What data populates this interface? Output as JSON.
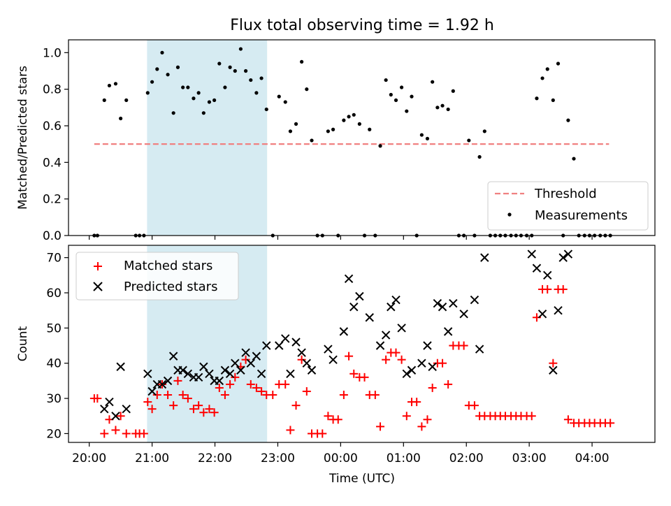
{
  "figure": {
    "title": "Flux total observing time = 1.92 h",
    "xlabel": "Time (UTC)",
    "xticks": [
      {
        "label": "20:00",
        "hours": 20.0
      },
      {
        "label": "21:00",
        "hours": 21.0
      },
      {
        "label": "22:00",
        "hours": 22.0
      },
      {
        "label": "23:00",
        "hours": 23.0
      },
      {
        "label": "00:00",
        "hours": 24.0
      },
      {
        "label": "01:00",
        "hours": 25.0
      },
      {
        "label": "02:00",
        "hours": 26.0
      },
      {
        "label": "03:00",
        "hours": 27.0
      },
      {
        "label": "04:00",
        "hours": 28.0
      }
    ],
    "colors": {
      "span": "#add8e6",
      "threshold": "#f08080",
      "matched": "#ff0000",
      "predicted": "#000000",
      "measurements": "#000000"
    }
  },
  "chart_data": [
    {
      "type": "scatter",
      "panel": "top",
      "ylabel": "Matched/Predicted stars",
      "yticks": [
        "0.0",
        "0.2",
        "0.4",
        "0.6",
        "0.8",
        "1.0"
      ],
      "xlim": [
        19.67,
        29.0
      ],
      "ylim": [
        0.0,
        1.07
      ],
      "shaded_span": {
        "start": 20.92,
        "end": 22.83
      },
      "threshold": {
        "name": "Threshold",
        "y": 0.5,
        "x_start": 20.08,
        "x_end": 28.27
      },
      "legend": {
        "location": "lower right",
        "entries": [
          "Threshold",
          "Measurements"
        ]
      },
      "series": [
        {
          "name": "Measurements",
          "x": [
            20.08,
            20.13,
            20.24,
            20.32,
            20.42,
            20.5,
            20.59,
            20.74,
            20.8,
            20.87,
            20.93,
            21.0,
            21.08,
            21.16,
            21.25,
            21.34,
            21.41,
            21.49,
            21.57,
            21.66,
            21.74,
            21.82,
            21.91,
            21.99,
            22.07,
            22.16,
            22.24,
            22.32,
            22.41,
            22.49,
            22.57,
            22.66,
            22.74,
            22.82,
            22.92,
            23.02,
            23.12,
            23.2,
            23.29,
            23.38,
            23.46,
            23.54,
            23.63,
            23.71,
            23.8,
            23.88,
            23.96,
            24.05,
            24.13,
            24.21,
            24.3,
            24.38,
            24.46,
            24.55,
            24.63,
            24.72,
            24.8,
            24.88,
            24.97,
            25.05,
            25.13,
            25.21,
            25.29,
            25.38,
            25.46,
            25.54,
            25.62,
            25.71,
            25.79,
            25.88,
            25.96,
            26.04,
            26.13,
            26.21,
            26.29,
            26.38,
            26.46,
            26.54,
            26.62,
            26.71,
            26.79,
            26.87,
            26.96,
            27.04,
            27.12,
            27.21,
            27.29,
            27.38,
            27.46,
            27.54,
            27.62,
            27.71,
            27.79,
            27.88,
            27.96,
            28.04,
            28.13,
            28.21,
            28.29
          ],
          "y": [
            0.0,
            0.0,
            0.74,
            0.82,
            0.83,
            0.64,
            0.74,
            0.0,
            0.0,
            0.0,
            0.78,
            0.84,
            0.91,
            1.0,
            0.88,
            0.67,
            0.92,
            0.81,
            0.81,
            0.75,
            0.78,
            0.67,
            0.73,
            0.74,
            0.94,
            0.81,
            0.92,
            0.9,
            1.02,
            0.9,
            0.85,
            0.78,
            0.86,
            0.69,
            0.0,
            0.76,
            0.73,
            0.57,
            0.61,
            0.95,
            0.8,
            0.52,
            0.0,
            0.0,
            0.57,
            0.58,
            0.0,
            0.63,
            0.65,
            0.66,
            0.61,
            0.0,
            0.58,
            0.0,
            0.49,
            0.85,
            0.77,
            0.74,
            0.81,
            0.68,
            0.76,
            0.0,
            0.55,
            0.53,
            0.84,
            0.7,
            0.71,
            0.69,
            0.79,
            0.0,
            0.0,
            0.52,
            0.0,
            0.43,
            0.57,
            0.0,
            0.0,
            0.0,
            0.0,
            0.0,
            0.0,
            0.0,
            0.0,
            0.0,
            0.75,
            0.86,
            0.91,
            0.74,
            0.94,
            0.0,
            0.63,
            0.42,
            0.0,
            0.0,
            0.0,
            0.0,
            0.0,
            0.0,
            0.0
          ]
        }
      ]
    },
    {
      "type": "scatter",
      "panel": "bottom",
      "ylabel": "Count",
      "yticks": [
        "20",
        "30",
        "40",
        "50",
        "60",
        "70"
      ],
      "xlim": [
        19.67,
        29.0
      ],
      "ylim": [
        17.5,
        73.5
      ],
      "shaded_span": {
        "start": 20.92,
        "end": 22.83
      },
      "legend": {
        "location": "upper left",
        "entries": [
          "Matched stars",
          "Predicted stars"
        ]
      },
      "series": [
        {
          "name": "Matched stars",
          "marker": "+",
          "x": [
            20.08,
            20.13,
            20.24,
            20.32,
            20.42,
            20.5,
            20.59,
            20.74,
            20.8,
            20.87,
            20.93,
            21.0,
            21.08,
            21.16,
            21.25,
            21.34,
            21.41,
            21.49,
            21.57,
            21.66,
            21.74,
            21.82,
            21.91,
            21.99,
            22.07,
            22.16,
            22.24,
            22.32,
            22.41,
            22.49,
            22.57,
            22.66,
            22.74,
            22.82,
            22.92,
            23.02,
            23.12,
            23.2,
            23.29,
            23.38,
            23.46,
            23.54,
            23.63,
            23.71,
            23.8,
            23.88,
            23.96,
            24.05,
            24.13,
            24.21,
            24.3,
            24.38,
            24.46,
            24.55,
            24.63,
            24.72,
            24.8,
            24.88,
            24.97,
            25.05,
            25.13,
            25.21,
            25.29,
            25.38,
            25.46,
            25.54,
            25.62,
            25.71,
            25.79,
            25.88,
            25.96,
            26.04,
            26.13,
            26.21,
            26.29,
            26.38,
            26.46,
            26.54,
            26.62,
            26.71,
            26.79,
            26.87,
            26.96,
            27.04,
            27.12,
            27.21,
            27.29,
            27.38,
            27.46,
            27.54,
            27.62,
            27.71,
            27.79,
            27.88,
            27.96,
            28.04,
            28.13,
            28.21,
            28.29
          ],
          "y": [
            30,
            30,
            20,
            24,
            21,
            25,
            20,
            20,
            20,
            20,
            29,
            27,
            31,
            34,
            31,
            28,
            35,
            31,
            30,
            27,
            28,
            26,
            27,
            26,
            33,
            31,
            34,
            36,
            39,
            41,
            34,
            33,
            32,
            31,
            31,
            34,
            34,
            21,
            28,
            41,
            32,
            20,
            20,
            20,
            25,
            24,
            24,
            31,
            42,
            37,
            36,
            36,
            31,
            31,
            22,
            41,
            43,
            43,
            41,
            25,
            29,
            29,
            22,
            24,
            33,
            40,
            40,
            34,
            45,
            45,
            45,
            28,
            28,
            25,
            25,
            25,
            25,
            25,
            25,
            25,
            25,
            25,
            25,
            25,
            53,
            61,
            61,
            40,
            61,
            61,
            24,
            23,
            23,
            23,
            23,
            23,
            23,
            23,
            23
          ]
        },
        {
          "name": "Predicted stars",
          "marker": "x",
          "x": [
            20.24,
            20.32,
            20.42,
            20.5,
            20.59,
            20.93,
            21.0,
            21.08,
            21.16,
            21.25,
            21.34,
            21.41,
            21.49,
            21.57,
            21.66,
            21.74,
            21.82,
            21.91,
            21.99,
            22.07,
            22.16,
            22.24,
            22.32,
            22.41,
            22.49,
            22.57,
            22.66,
            22.74,
            22.82,
            23.02,
            23.12,
            23.2,
            23.29,
            23.38,
            23.46,
            23.54,
            23.8,
            23.88,
            24.05,
            24.13,
            24.21,
            24.3,
            24.46,
            24.63,
            24.72,
            24.8,
            24.88,
            24.97,
            25.05,
            25.13,
            25.29,
            25.38,
            25.46,
            25.54,
            25.62,
            25.71,
            25.79,
            25.96,
            26.13,
            26.21,
            26.29,
            27.04,
            27.12,
            27.21,
            27.29,
            27.38,
            27.46,
            27.54,
            27.62
          ],
          "y": [
            27,
            29,
            25,
            39,
            27,
            37,
            32,
            34,
            34,
            35,
            42,
            38,
            38,
            37,
            36,
            36,
            39,
            37,
            35,
            35,
            38,
            37,
            40,
            38,
            43,
            40,
            42,
            37,
            45,
            45,
            47,
            37,
            46,
            43,
            40,
            38,
            44,
            41,
            49,
            64,
            56,
            59,
            53,
            45,
            48,
            56,
            58,
            50,
            37,
            38,
            40,
            45,
            39,
            57,
            56,
            49,
            57,
            54,
            58,
            44,
            70,
            71,
            67,
            54,
            65,
            38,
            55,
            70,
            71
          ]
        }
      ]
    }
  ]
}
